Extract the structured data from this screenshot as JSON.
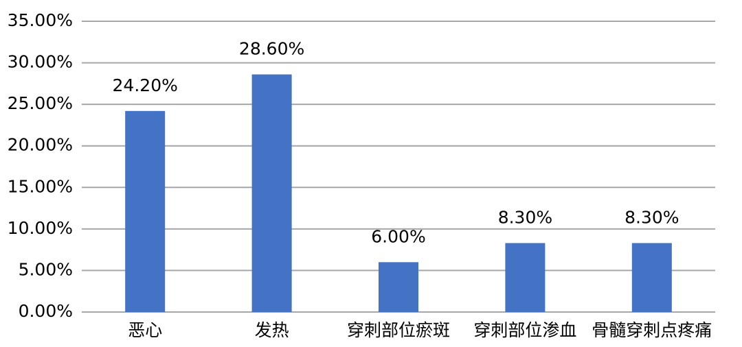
{
  "chart_data": {
    "type": "bar",
    "categories": [
      "恶心",
      "发热",
      "穿刺部位瘀斑",
      "穿刺部位渗血",
      "骨髓穿刺点疼痛"
    ],
    "values": [
      24.2,
      28.6,
      6.0,
      8.3,
      8.3
    ],
    "value_labels": [
      "24.20%",
      "28.60%",
      "6.00%",
      "8.30%",
      "8.30%"
    ],
    "color": "#4472c4",
    "ylim": [
      0,
      35
    ],
    "yticks": [
      {
        "value": 0,
        "label": "0.00%"
      },
      {
        "value": 5,
        "label": "5.00%"
      },
      {
        "value": 10,
        "label": "10.00%"
      },
      {
        "value": 15,
        "label": "15.00%"
      },
      {
        "value": 20,
        "label": "20.00%"
      },
      {
        "value": 25,
        "label": "25.00%"
      },
      {
        "value": 30,
        "label": "30.00%"
      },
      {
        "value": 35,
        "label": "35.00%"
      }
    ],
    "grid": true
  }
}
